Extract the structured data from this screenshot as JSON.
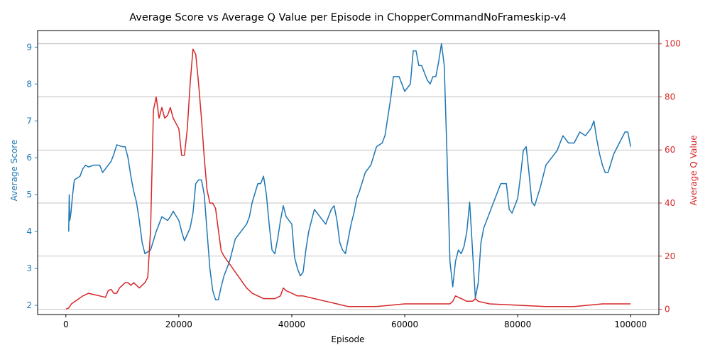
{
  "chart_data": {
    "type": "line",
    "title": "Average Score vs Average Q Value per Episode in ChopperCommandNoFrameskip-v4",
    "xlabel": "Episode",
    "ylabel_left": "Average Score",
    "ylabel_right": "Average Q Value",
    "xlim": [
      -5000,
      105000
    ],
    "ylim_left": [
      1.75,
      9.45
    ],
    "ylim_right": [
      -2,
      105
    ],
    "x_ticks": [
      0,
      20000,
      40000,
      60000,
      80000,
      100000
    ],
    "x_tick_labels": [
      "0",
      "20000",
      "40000",
      "60000",
      "80000",
      "100000"
    ],
    "y_left_ticks": [
      2,
      3,
      4,
      5,
      6,
      7,
      8,
      9
    ],
    "y_left_tick_labels": [
      "2",
      "3",
      "4",
      "5",
      "6",
      "7",
      "8",
      "9"
    ],
    "y_right_ticks": [
      0,
      20,
      40,
      60,
      80,
      100
    ],
    "y_right_tick_labels": [
      "0",
      "20",
      "40",
      "60",
      "80",
      "100"
    ],
    "grid": "horizontal lines at right-axis ticks",
    "colors": {
      "score": "#1f77b4",
      "q": "#d62728",
      "grid": "#b0b0b0",
      "axis": "#000000"
    },
    "series": [
      {
        "axis": "left",
        "x": [
          500,
          600,
          700,
          900,
          1200,
          1500,
          2000,
          2500,
          3000,
          3500,
          4000,
          5000,
          6000,
          6500,
          7000,
          7500,
          8000,
          8500,
          9000,
          10000,
          10500,
          11000,
          11500,
          12000,
          12500,
          13000,
          13500,
          14000,
          15000,
          16000,
          16500,
          17000,
          18000,
          18500,
          19000,
          20000,
          20500,
          21000,
          22000,
          22500,
          23000,
          23500,
          24000,
          24500,
          25000,
          25500,
          26000,
          26500,
          27000,
          27500,
          28000,
          29000,
          30000,
          31000,
          32000,
          32500,
          33000,
          34000,
          34500,
          35000,
          35500,
          36000,
          36500,
          37000,
          37500,
          38000,
          38500,
          39000,
          40000,
          40500,
          41000,
          41500,
          42000,
          42500,
          43000,
          44000,
          45000,
          46000,
          47000,
          47500,
          48000,
          48500,
          49000,
          49500,
          50000,
          50500,
          51000,
          51500,
          52000,
          53000,
          54000,
          55000,
          56000,
          56500,
          57000,
          57500,
          58000,
          59000,
          60000,
          61000,
          61500,
          62000,
          62500,
          63000,
          64000,
          64500,
          65000,
          65500,
          66000,
          66500,
          67000,
          67500,
          68000,
          68500,
          69000,
          69500,
          70000,
          70500,
          71000,
          71500,
          72000,
          72500,
          73000,
          73500,
          74000,
          75000,
          76000,
          77000,
          78000,
          78500,
          79000,
          80000,
          80500,
          81000,
          81500,
          82000,
          82500,
          83000,
          84000,
          85000,
          86000,
          87000,
          88000,
          89000,
          90000,
          91000,
          92000,
          93000,
          93500,
          94000,
          94500,
          95000,
          95500,
          96000,
          97000,
          98000,
          99000,
          99500,
          100000
        ],
        "values": [
          4.0,
          5.0,
          4.3,
          4.5,
          5.0,
          5.4,
          5.45,
          5.5,
          5.7,
          5.8,
          5.75,
          5.8,
          5.8,
          5.6,
          5.7,
          5.8,
          5.9,
          6.1,
          6.35,
          6.3,
          6.3,
          6.0,
          5.5,
          5.1,
          4.8,
          4.3,
          3.7,
          3.4,
          3.5,
          4.0,
          4.2,
          4.4,
          4.3,
          4.4,
          4.55,
          4.3,
          4.0,
          3.75,
          4.1,
          4.5,
          5.3,
          5.4,
          5.4,
          5.0,
          4.0,
          3.0,
          2.4,
          2.15,
          2.15,
          2.5,
          2.8,
          3.2,
          3.8,
          4.0,
          4.2,
          4.4,
          4.8,
          5.3,
          5.3,
          5.5,
          5.0,
          4.2,
          3.5,
          3.4,
          3.8,
          4.3,
          4.7,
          4.4,
          4.2,
          3.3,
          3.0,
          2.8,
          2.9,
          3.5,
          4.0,
          4.6,
          4.4,
          4.2,
          4.6,
          4.7,
          4.3,
          3.7,
          3.5,
          3.4,
          3.8,
          4.2,
          4.5,
          4.9,
          5.1,
          5.6,
          5.8,
          6.3,
          6.4,
          6.6,
          7.1,
          7.6,
          8.2,
          8.2,
          7.8,
          8.0,
          8.9,
          8.9,
          8.5,
          8.5,
          8.1,
          8.0,
          8.2,
          8.2,
          8.6,
          9.1,
          8.5,
          6.0,
          3.2,
          2.5,
          3.2,
          3.5,
          3.4,
          3.6,
          4.0,
          4.8,
          3.5,
          2.2,
          2.6,
          3.7,
          4.1,
          4.5,
          4.9,
          5.3,
          5.3,
          4.6,
          4.5,
          4.9,
          5.5,
          6.2,
          6.3,
          5.6,
          4.8,
          4.7,
          5.2,
          5.8,
          6.0,
          6.2,
          6.6,
          6.4,
          6.4,
          6.7,
          6.6,
          6.8,
          7.0,
          6.5,
          6.1,
          5.8,
          5.6,
          5.6,
          6.1,
          6.4,
          6.7,
          6.7,
          6.3
        ]
      },
      {
        "axis": "right",
        "x": [
          0,
          500,
          1000,
          2000,
          3000,
          4000,
          5000,
          6000,
          7000,
          7500,
          8000,
          8500,
          9000,
          9500,
          10000,
          10500,
          11000,
          11500,
          12000,
          13000,
          14000,
          14500,
          15000,
          15500,
          16000,
          16500,
          17000,
          17500,
          18000,
          18500,
          19000,
          19500,
          20000,
          20500,
          21000,
          21500,
          22000,
          22500,
          23000,
          23500,
          24000,
          24500,
          25000,
          25500,
          26000,
          26500,
          27000,
          27500,
          28000,
          29000,
          30000,
          31000,
          32000,
          33000,
          34000,
          35000,
          36000,
          37000,
          38000,
          38500,
          39000,
          40000,
          41000,
          42000,
          44000,
          46000,
          48000,
          50000,
          52000,
          55000,
          60000,
          65000,
          68000,
          68500,
          69000,
          70000,
          71000,
          72000,
          72500,
          73000,
          75000,
          80000,
          85000,
          90000,
          95000,
          100000
        ],
        "values": [
          0,
          0.5,
          2,
          3.5,
          5,
          6,
          5.5,
          5,
          4.5,
          7,
          7.5,
          6,
          6,
          8,
          9,
          10,
          10,
          9,
          10,
          8,
          10,
          12,
          30,
          75,
          80,
          72,
          76,
          72,
          73,
          76,
          72,
          70,
          68,
          58,
          58,
          68,
          85,
          98,
          96,
          85,
          72,
          57,
          45,
          40,
          40,
          38,
          30,
          22,
          20,
          17,
          14,
          11,
          8,
          6,
          5,
          4,
          4,
          4,
          5,
          8,
          7,
          6,
          5,
          5,
          4,
          3,
          2,
          1,
          1,
          1,
          2,
          2,
          2,
          3,
          5,
          4,
          3,
          3,
          4,
          3,
          2,
          1.5,
          1,
          1,
          2,
          2
        ]
      }
    ]
  }
}
